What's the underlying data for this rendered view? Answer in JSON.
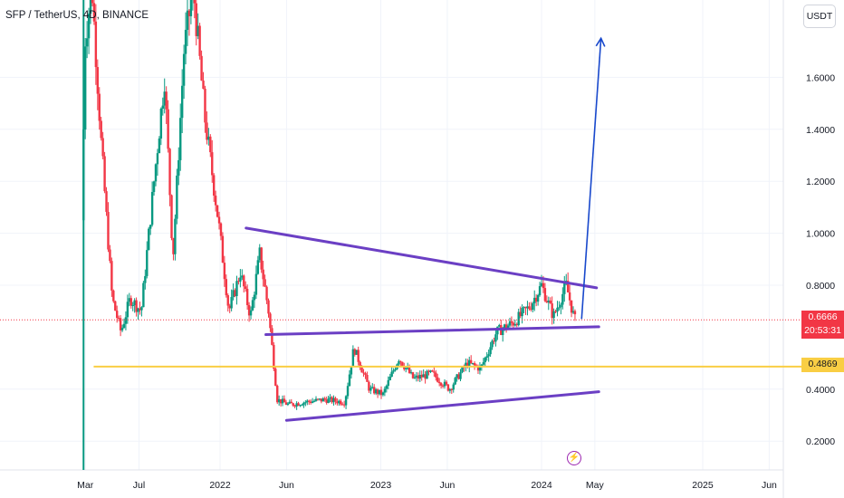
{
  "header": {
    "symbol_title": "SFP / TetherUS, 4D, BINANCE"
  },
  "toolbar": {
    "currency_label": "USDT"
  },
  "current_price": {
    "value": "0.6666",
    "countdown": "20:53:31",
    "color": "#f23645"
  },
  "level_label": {
    "value": "0.4869",
    "color": "#f9ce44"
  },
  "event_marker": {
    "icon": "lightning-icon",
    "glyph": "⚡",
    "color": "#9c27b0"
  },
  "chart_data": {
    "type": "candlestick",
    "title": "SFP / TetherUS, 4D, BINANCE",
    "xlabel": "",
    "ylabel": "",
    "ylim": [
      0.13,
      1.9
    ],
    "x_ticks": [
      "Mar",
      "Jul",
      "2022",
      "Jun",
      "2023",
      "Jun",
      "2024",
      "May",
      "2025",
      "Jun"
    ],
    "x_tick_dates": [
      "2021-03-01",
      "2021-07-01",
      "2022-01-01",
      "2022-06-01",
      "2023-01-01",
      "2023-06-01",
      "2024-01-01",
      "2024-05-01",
      "2025-01-01",
      "2025-06-01"
    ],
    "y_ticks": [
      "1.6000",
      "1.4000",
      "1.2000",
      "1.0000",
      "0.8000",
      "0.4000",
      "0.2000"
    ],
    "y_tick_values": [
      1.6,
      1.4,
      1.2,
      1.0,
      0.8,
      0.4,
      0.2
    ],
    "grid": true,
    "up_color": "#089981",
    "down_color": "#f23645",
    "price_path": [
      [
        "2021-02-25",
        1.05
      ],
      [
        "2021-03-05",
        1.75
      ],
      [
        "2021-03-20",
        1.95
      ],
      [
        "2021-04-10",
        1.35
      ],
      [
        "2021-05-05",
        0.75
      ],
      [
        "2021-05-25",
        0.62
      ],
      [
        "2021-06-15",
        0.75
      ],
      [
        "2021-07-10",
        0.7
      ],
      [
        "2021-08-05",
        1.15
      ],
      [
        "2021-09-01",
        1.6
      ],
      [
        "2021-09-20",
        0.9
      ],
      [
        "2021-10-15",
        1.7
      ],
      [
        "2021-11-05",
        1.95
      ],
      [
        "2021-12-01",
        1.45
      ],
      [
        "2022-01-01",
        1.05
      ],
      [
        "2022-01-25",
        0.7
      ],
      [
        "2022-02-20",
        0.85
      ],
      [
        "2022-03-15",
        0.68
      ],
      [
        "2022-04-05",
        0.92
      ],
      [
        "2022-04-25",
        0.7
      ],
      [
        "2022-05-15",
        0.36
      ],
      [
        "2022-06-10",
        0.34
      ],
      [
        "2022-07-15",
        0.35
      ],
      [
        "2022-09-01",
        0.36
      ],
      [
        "2022-10-15",
        0.35
      ],
      [
        "2022-11-05",
        0.56
      ],
      [
        "2022-12-10",
        0.4
      ],
      [
        "2023-01-10",
        0.38
      ],
      [
        "2023-02-15",
        0.52
      ],
      [
        "2023-03-20",
        0.44
      ],
      [
        "2023-05-01",
        0.46
      ],
      [
        "2023-06-10",
        0.4
      ],
      [
        "2023-07-20",
        0.5
      ],
      [
        "2023-08-20",
        0.48
      ],
      [
        "2023-09-25",
        0.62
      ],
      [
        "2023-11-05",
        0.66
      ],
      [
        "2023-12-10",
        0.72
      ],
      [
        "2024-01-05",
        0.8
      ],
      [
        "2024-02-01",
        0.68
      ],
      [
        "2024-03-01",
        0.8
      ],
      [
        "2024-03-20",
        0.6666
      ]
    ],
    "current_price": 0.6666,
    "horizontal_level": {
      "value": 0.4869,
      "color": "#f9ce44"
    },
    "drawings": {
      "upper_trendline": {
        "color": "#6b3fc4",
        "from": [
          "2022-03-01",
          1.02
        ],
        "to": [
          "2024-05-05",
          0.79
        ]
      },
      "middle_trendline": {
        "color": "#6b3fc4",
        "from": [
          "2022-04-15",
          0.61
        ],
        "to": [
          "2024-05-10",
          0.64
        ]
      },
      "lower_trendline": {
        "color": "#6b3fc4",
        "from": [
          "2022-06-01",
          0.28
        ],
        "to": [
          "2024-05-10",
          0.39
        ]
      },
      "projection_arrow": {
        "color": "#1848cc",
        "from": [
          "2024-04-01",
          0.67
        ],
        "to": [
          "2024-05-15",
          1.75
        ]
      },
      "vertical_marker": {
        "color": "#089981",
        "date": "2021-02-25"
      }
    }
  }
}
